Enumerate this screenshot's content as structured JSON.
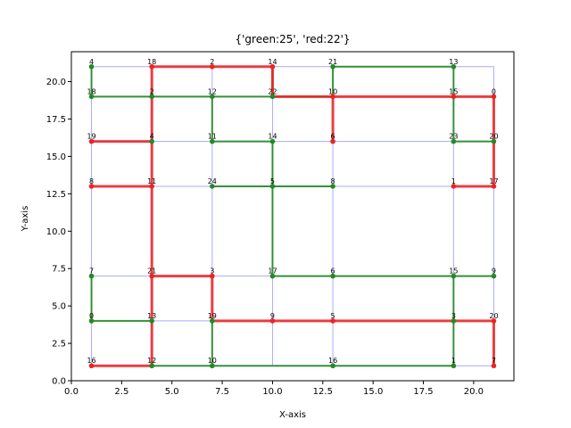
{
  "chart_data": {
    "type": "scatter",
    "title": "{'green:25', 'red:22'}",
    "xlabel": "X-axis",
    "ylabel": "Y-axis",
    "xlim": [
      0,
      22
    ],
    "ylim": [
      0,
      22
    ],
    "xticks": [
      0.0,
      2.5,
      5.0,
      7.5,
      10.0,
      12.5,
      15.0,
      17.5,
      20.0
    ],
    "yticks": [
      0.0,
      2.5,
      5.0,
      7.5,
      10.0,
      12.5,
      15.0,
      17.5,
      20.0
    ],
    "xtick_labels": [
      "0.0",
      "2.5",
      "5.0",
      "7.5",
      "10.0",
      "12.5",
      "15.0",
      "17.5",
      "20.0"
    ],
    "ytick_labels": [
      "0.0",
      "2.5",
      "5.0",
      "7.5",
      "10.0",
      "12.5",
      "15.0",
      "17.5",
      "20.0"
    ],
    "grid_x": [
      1,
      4,
      7,
      10,
      13,
      19,
      21
    ],
    "grid_y": [
      1,
      4,
      7,
      13,
      16,
      19,
      21
    ],
    "colors": {
      "green": "#228B22",
      "red": "#EE2222",
      "grid": "#AAAAFF"
    },
    "nodes": [
      {
        "x": 1,
        "y": 21,
        "label": "4",
        "color": "green"
      },
      {
        "x": 4,
        "y": 21,
        "label": "18",
        "color": "red"
      },
      {
        "x": 7,
        "y": 21,
        "label": "2",
        "color": "red"
      },
      {
        "x": 10,
        "y": 21,
        "label": "14",
        "color": "red"
      },
      {
        "x": 13,
        "y": 21,
        "label": "21",
        "color": "green"
      },
      {
        "x": 19,
        "y": 21,
        "label": "13",
        "color": "green"
      },
      {
        "x": 1,
        "y": 19,
        "label": "18",
        "color": "green"
      },
      {
        "x": 4,
        "y": 19,
        "label": "2",
        "color": "green"
      },
      {
        "x": 7,
        "y": 19,
        "label": "12",
        "color": "green"
      },
      {
        "x": 10,
        "y": 19,
        "label": "22",
        "color": "green"
      },
      {
        "x": 13,
        "y": 19,
        "label": "10",
        "color": "red"
      },
      {
        "x": 19,
        "y": 19,
        "label": "15",
        "color": "red"
      },
      {
        "x": 21,
        "y": 19,
        "label": "0",
        "color": "red"
      },
      {
        "x": 1,
        "y": 16,
        "label": "19",
        "color": "red"
      },
      {
        "x": 4,
        "y": 16,
        "label": "4",
        "color": "green"
      },
      {
        "x": 7,
        "y": 16,
        "label": "11",
        "color": "green"
      },
      {
        "x": 10,
        "y": 16,
        "label": "14",
        "color": "green"
      },
      {
        "x": 13,
        "y": 16,
        "label": "6",
        "color": "red"
      },
      {
        "x": 19,
        "y": 16,
        "label": "23",
        "color": "green"
      },
      {
        "x": 21,
        "y": 16,
        "label": "20",
        "color": "green"
      },
      {
        "x": 1,
        "y": 13,
        "label": "8",
        "color": "red"
      },
      {
        "x": 4,
        "y": 13,
        "label": "11",
        "color": "red"
      },
      {
        "x": 7,
        "y": 13,
        "label": "24",
        "color": "green"
      },
      {
        "x": 10,
        "y": 13,
        "label": "5",
        "color": "green"
      },
      {
        "x": 13,
        "y": 13,
        "label": "8",
        "color": "green"
      },
      {
        "x": 19,
        "y": 13,
        "label": "1",
        "color": "red"
      },
      {
        "x": 21,
        "y": 13,
        "label": "17",
        "color": "red"
      },
      {
        "x": 1,
        "y": 7,
        "label": "7",
        "color": "green"
      },
      {
        "x": 4,
        "y": 7,
        "label": "21",
        "color": "red"
      },
      {
        "x": 7,
        "y": 7,
        "label": "3",
        "color": "red"
      },
      {
        "x": 10,
        "y": 7,
        "label": "17",
        "color": "green"
      },
      {
        "x": 13,
        "y": 7,
        "label": "6",
        "color": "green"
      },
      {
        "x": 19,
        "y": 7,
        "label": "15",
        "color": "green"
      },
      {
        "x": 21,
        "y": 7,
        "label": "9",
        "color": "green"
      },
      {
        "x": 1,
        "y": 4,
        "label": "0",
        "color": "green"
      },
      {
        "x": 4,
        "y": 4,
        "label": "13",
        "color": "green"
      },
      {
        "x": 7,
        "y": 4,
        "label": "19",
        "color": "green"
      },
      {
        "x": 10,
        "y": 4,
        "label": "9",
        "color": "red"
      },
      {
        "x": 13,
        "y": 4,
        "label": "5",
        "color": "red"
      },
      {
        "x": 19,
        "y": 4,
        "label": "3",
        "color": "green"
      },
      {
        "x": 21,
        "y": 4,
        "label": "20",
        "color": "red"
      },
      {
        "x": 1,
        "y": 1,
        "label": "16",
        "color": "red"
      },
      {
        "x": 4,
        "y": 1,
        "label": "12",
        "color": "green"
      },
      {
        "x": 7,
        "y": 1,
        "label": "10",
        "color": "green"
      },
      {
        "x": 13,
        "y": 1,
        "label": "16",
        "color": "green"
      },
      {
        "x": 19,
        "y": 1,
        "label": "1",
        "color": "green"
      },
      {
        "x": 21,
        "y": 1,
        "label": "7",
        "color": "red"
      }
    ],
    "grid_edges": [
      [
        [
          1,
          21
        ],
        [
          21,
          21
        ]
      ],
      [
        [
          1,
          19
        ],
        [
          21,
          19
        ]
      ],
      [
        [
          1,
          16
        ],
        [
          21,
          16
        ]
      ],
      [
        [
          1,
          13
        ],
        [
          21,
          13
        ]
      ],
      [
        [
          1,
          7
        ],
        [
          21,
          7
        ]
      ],
      [
        [
          1,
          4
        ],
        [
          21,
          4
        ]
      ],
      [
        [
          1,
          1
        ],
        [
          21,
          1
        ]
      ],
      [
        [
          1,
          1
        ],
        [
          1,
          21
        ]
      ],
      [
        [
          4,
          1
        ],
        [
          4,
          21
        ]
      ],
      [
        [
          7,
          1
        ],
        [
          7,
          21
        ]
      ],
      [
        [
          10,
          1
        ],
        [
          10,
          21
        ]
      ],
      [
        [
          13,
          1
        ],
        [
          13,
          21
        ]
      ],
      [
        [
          19,
          1
        ],
        [
          19,
          21
        ]
      ],
      [
        [
          21,
          1
        ],
        [
          21,
          21
        ]
      ]
    ],
    "green_edges": [
      [
        [
          1,
          21
        ],
        [
          1,
          19
        ]
      ],
      [
        [
          1,
          19
        ],
        [
          4,
          19
        ]
      ],
      [
        [
          4,
          19
        ],
        [
          7,
          19
        ]
      ],
      [
        [
          7,
          19
        ],
        [
          10,
          19
        ]
      ],
      [
        [
          7,
          19
        ],
        [
          7,
          16
        ]
      ],
      [
        [
          7,
          16
        ],
        [
          10,
          16
        ]
      ],
      [
        [
          10,
          21
        ],
        [
          10,
          19
        ]
      ],
      [
        [
          10,
          19
        ],
        [
          13,
          19
        ]
      ],
      [
        [
          13,
          21
        ],
        [
          19,
          21
        ]
      ],
      [
        [
          19,
          21
        ],
        [
          19,
          19
        ]
      ],
      [
        [
          19,
          19
        ],
        [
          19,
          16
        ]
      ],
      [
        [
          19,
          16
        ],
        [
          21,
          16
        ]
      ],
      [
        [
          7,
          13
        ],
        [
          10,
          13
        ]
      ],
      [
        [
          10,
          13
        ],
        [
          13,
          13
        ]
      ],
      [
        [
          10,
          16
        ],
        [
          10,
          7
        ]
      ],
      [
        [
          10,
          7
        ],
        [
          19,
          7
        ]
      ],
      [
        [
          19,
          7
        ],
        [
          21,
          7
        ]
      ],
      [
        [
          19,
          7
        ],
        [
          19,
          1
        ]
      ],
      [
        [
          1,
          7
        ],
        [
          1,
          4
        ]
      ],
      [
        [
          1,
          4
        ],
        [
          4,
          4
        ]
      ],
      [
        [
          7,
          4
        ],
        [
          7,
          1
        ]
      ],
      [
        [
          4,
          1
        ],
        [
          19,
          1
        ]
      ],
      [
        [
          13,
          21
        ],
        [
          13,
          19
        ]
      ]
    ],
    "red_edges": [
      [
        [
          4,
          21
        ],
        [
          10,
          21
        ]
      ],
      [
        [
          10,
          21
        ],
        [
          10,
          19
        ]
      ],
      [
        [
          10,
          19
        ],
        [
          21,
          19
        ]
      ],
      [
        [
          21,
          19
        ],
        [
          21,
          13
        ]
      ],
      [
        [
          13,
          19
        ],
        [
          13,
          16
        ]
      ],
      [
        [
          19,
          13
        ],
        [
          21,
          13
        ]
      ],
      [
        [
          1,
          16
        ],
        [
          4,
          16
        ]
      ],
      [
        [
          1,
          13
        ],
        [
          4,
          13
        ]
      ],
      [
        [
          4,
          21
        ],
        [
          4,
          1
        ]
      ],
      [
        [
          4,
          7
        ],
        [
          7,
          7
        ]
      ],
      [
        [
          7,
          7
        ],
        [
          7,
          4
        ]
      ],
      [
        [
          7,
          4
        ],
        [
          21,
          4
        ]
      ],
      [
        [
          21,
          4
        ],
        [
          21,
          1
        ]
      ],
      [
        [
          1,
          1
        ],
        [
          4,
          1
        ]
      ]
    ]
  }
}
